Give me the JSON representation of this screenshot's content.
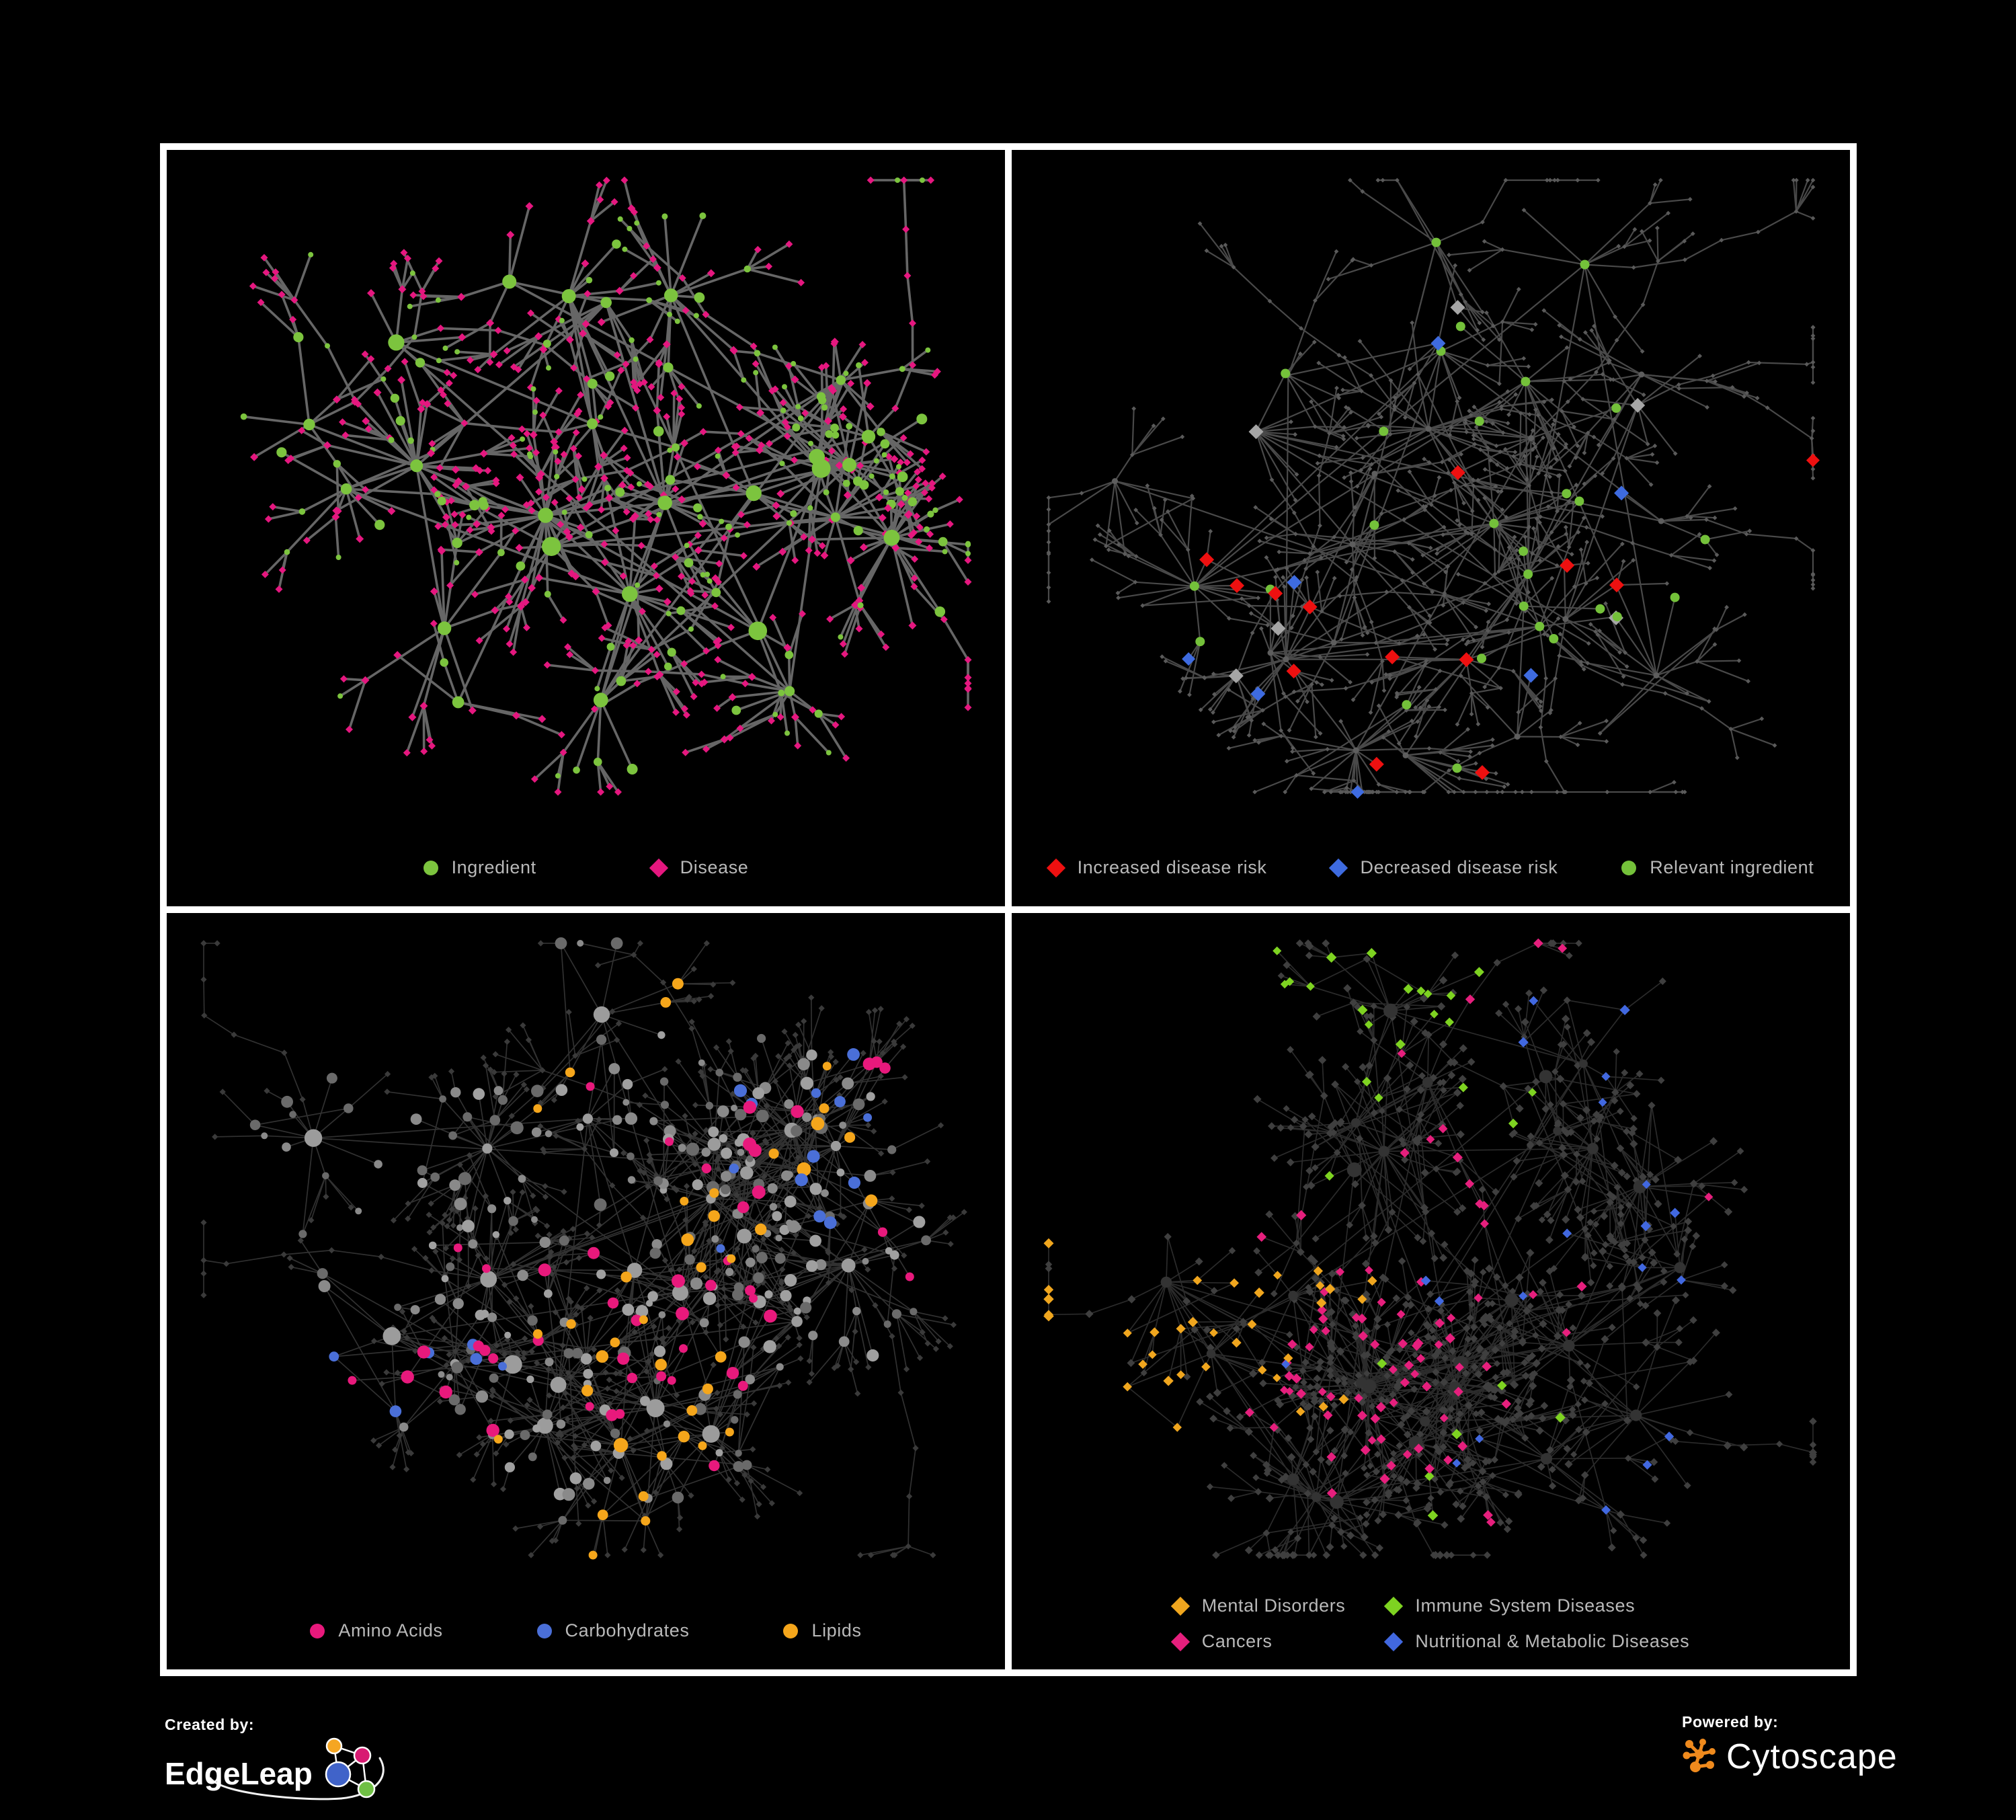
{
  "colors": {
    "background": "#000000",
    "frame": "#ffffff",
    "legend_text": "#b9b9b9"
  },
  "panels": [
    {
      "name": "ingredient-disease-network",
      "legend": [
        {
          "label": "Ingredient",
          "shape": "circle",
          "color": "#7cc43e"
        },
        {
          "label": "Disease",
          "shape": "diamond",
          "color": "#e5177f"
        }
      ],
      "net": {
        "kind": 1,
        "seed": 7,
        "hubs": 26,
        "kmin": 4,
        "kmax": 12,
        "r1": 95,
        "r2": 55,
        "gprob": 0.5,
        "gmax": 4,
        "tendril": 0.5,
        "mesh": 0.0,
        "edge": {
          "color": "#6f6f6f",
          "width": 3.6,
          "opacity": 0.92
        },
        "palette": {
          "green": "#7cc43e",
          "magenta": "#e5177f"
        }
      }
    },
    {
      "name": "disease-risk-network",
      "legend": [
        {
          "label": "Increased disease risk",
          "shape": "diamond",
          "color": "#ee1010"
        },
        {
          "label": "Decreased disease risk",
          "shape": "diamond",
          "color": "#3e6be0"
        },
        {
          "label": "Relevant ingredient",
          "shape": "circle",
          "color": "#74c13a"
        }
      ],
      "net": {
        "kind": 2,
        "seed": 13,
        "hubs": 30,
        "kmin": 3,
        "kmax": 10,
        "r1": 90,
        "r2": 55,
        "gprob": 0.6,
        "gmax": 4,
        "tendril": 0.8,
        "mesh": 0.15,
        "edge": {
          "color": "#525252",
          "width": 2.2,
          "opacity": 0.9
        },
        "palette": {
          "base": "#5a5a5a",
          "red": "#ee1010",
          "blue": "#3e6be0",
          "gray": "#a6a6a6",
          "green": "#74c13a"
        }
      }
    },
    {
      "name": "nutrient-class-network",
      "legend": [
        {
          "label": "Amino Acids",
          "shape": "circle",
          "color": "#e8197c"
        },
        {
          "label": "Carbohydrates",
          "shape": "circle",
          "color": "#4a6fd8"
        },
        {
          "label": "Lipids",
          "shape": "circle",
          "color": "#f5a61b"
        }
      ],
      "net": {
        "kind": 3,
        "seed": 21,
        "hubs": 24,
        "kmin": 5,
        "kmax": 16,
        "r1": 100,
        "r2": 60,
        "gprob": 0.5,
        "gmax": 5,
        "tendril": 0.5,
        "mesh": 0.5,
        "edge": {
          "color": "#8f8f8f",
          "width": 1.7,
          "opacity": 0.34
        },
        "palette": {
          "leaf": "#3a3a3a",
          "grayhub": "#9c9c9c",
          "amber": "#f5a61b",
          "pink": "#e8197c",
          "blue": "#4a6fd8"
        }
      }
    },
    {
      "name": "disease-class-network",
      "legend": [
        {
          "label": "Mental Disorders",
          "shape": "diamond",
          "color": "#f0a61e"
        },
        {
          "label": "Immune System Diseases",
          "shape": "diamond",
          "color": "#7ed321"
        },
        {
          "label": "Cancers",
          "shape": "diamond",
          "color": "#e61f7d"
        },
        {
          "label": "Nutritional & Metabolic Diseases",
          "shape": "diamond",
          "color": "#4168e0"
        }
      ],
      "legend_columns": 2,
      "net": {
        "kind": 4,
        "seed": 29,
        "hubs": 28,
        "kmin": 5,
        "kmax": 14,
        "r1": 95,
        "r2": 58,
        "gprob": 0.5,
        "gmax": 5,
        "tendril": 0.5,
        "mesh": 0.4,
        "edge": {
          "color": "#8f8f8f",
          "width": 1.7,
          "opacity": 0.3
        },
        "palette": {
          "dark": "#3f3f3f",
          "hub": "#333333",
          "orange": "#f0a61e",
          "pink": "#e61f7d",
          "blue": "#4168e0",
          "green": "#7ed321"
        }
      }
    }
  ],
  "footer": {
    "created_by_label": "Created by:",
    "edgeleap_name": "EdgeLeap",
    "powered_by_label": "Powered by:",
    "cytoscape_name": "Cytoscape",
    "edgeleap_mark_colors": {
      "orange": "#f5a623",
      "pink": "#d81b72",
      "blue": "#4063c9",
      "green": "#6fbf44"
    },
    "cytoscape_orange": "#ef8a1d"
  }
}
